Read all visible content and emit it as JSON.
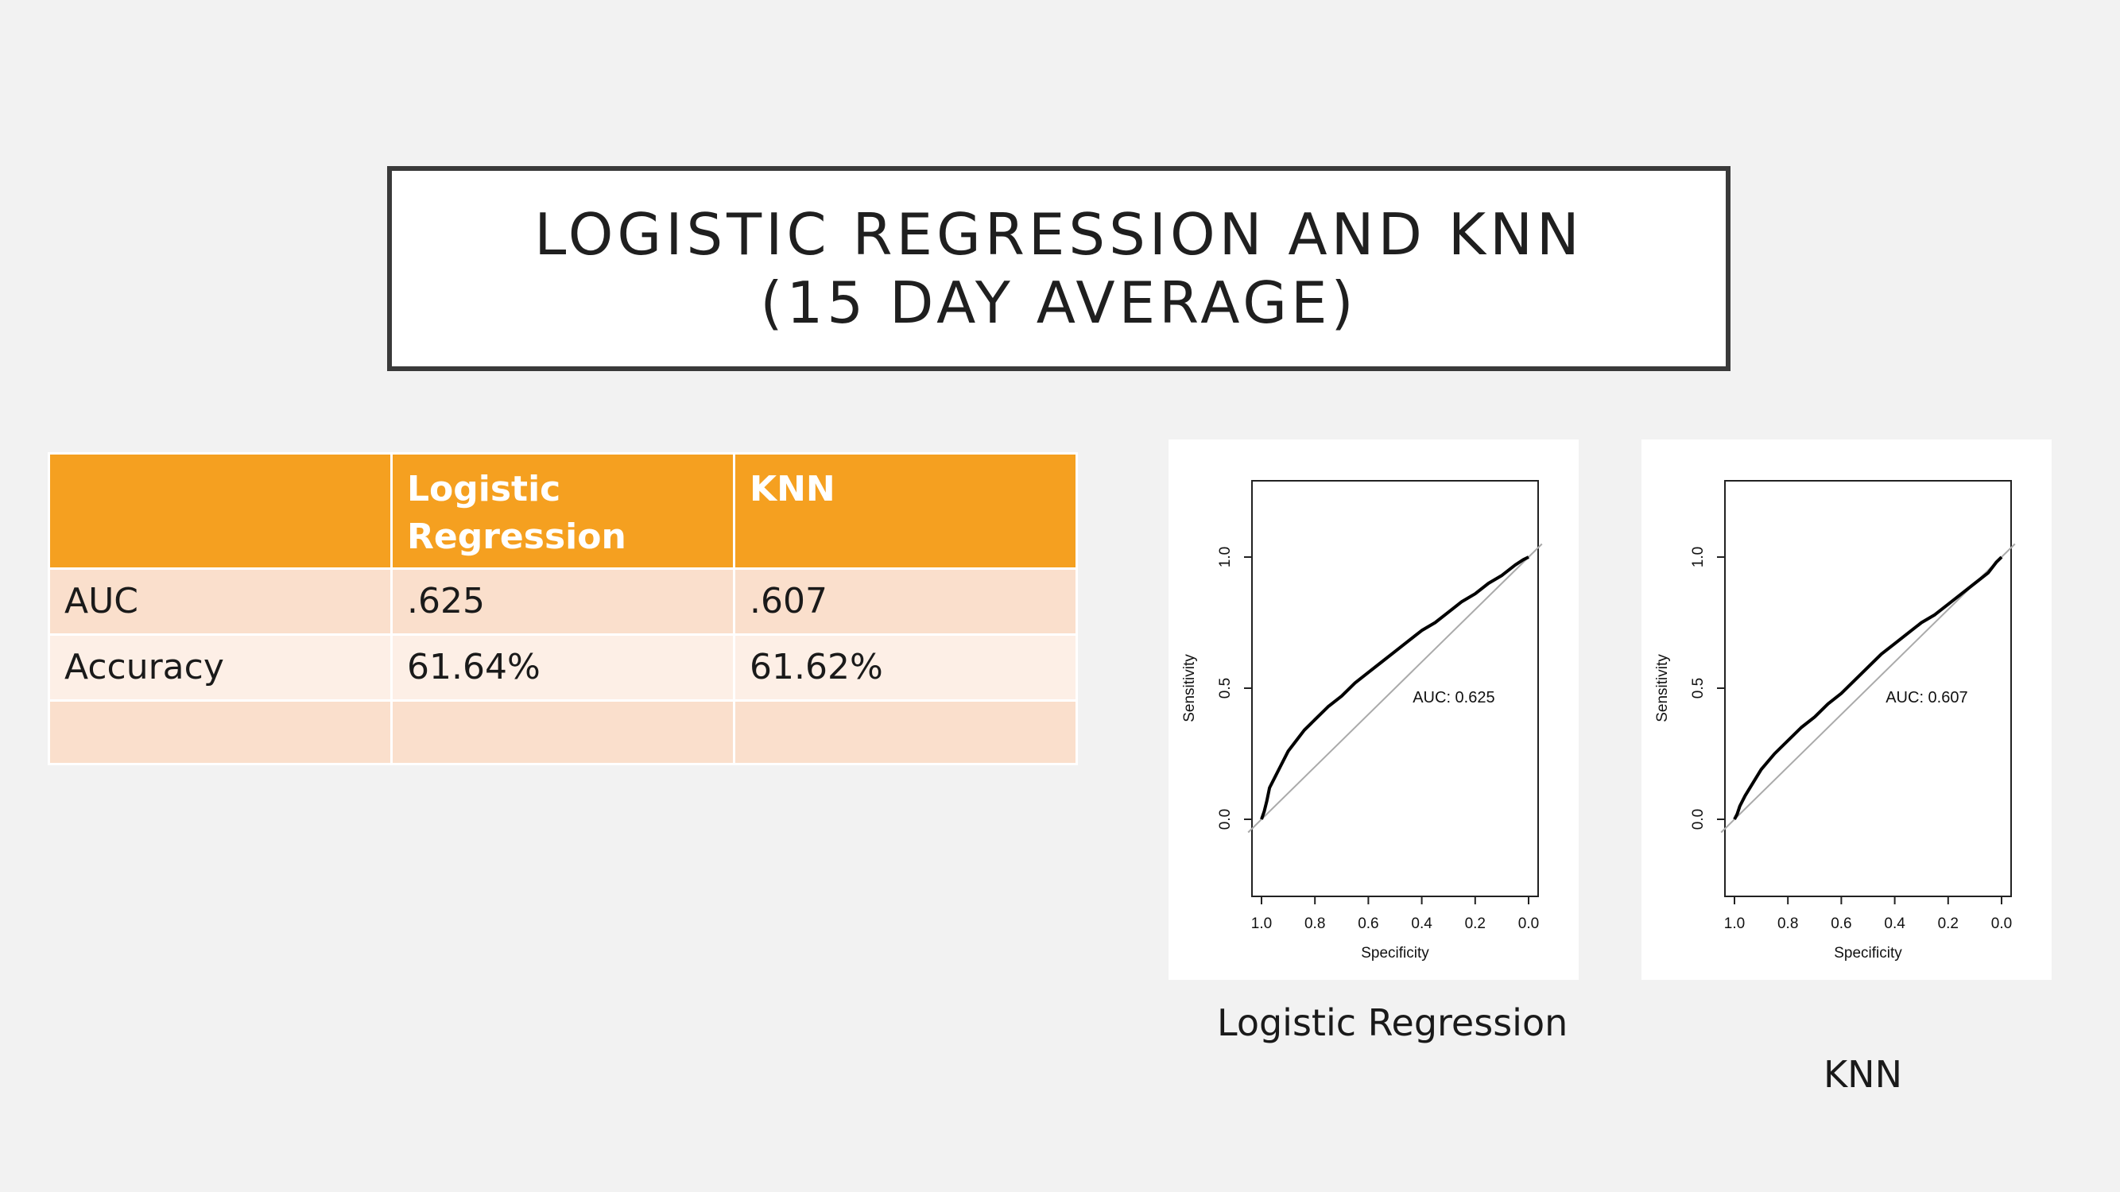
{
  "slide": {
    "title_line1": "LOGISTIC REGRESSION AND KNN",
    "title_line2": "(15 DAY AVERAGE)"
  },
  "table": {
    "headers": [
      "",
      "Logistic Regression",
      "KNN"
    ],
    "rows": [
      [
        "AUC",
        ".625",
        ".607"
      ],
      [
        "Accuracy",
        "61.64%",
        "61.62%"
      ],
      [
        "",
        "",
        ""
      ]
    ]
  },
  "captions": {
    "left": "Logistic Regression",
    "right": "KNN"
  },
  "chart_data": [
    {
      "type": "line",
      "xlabel": "Specificity",
      "ylabel": "Sensitivity",
      "x_reversed": true,
      "xlim": [
        1.0,
        0.0
      ],
      "ylim": [
        0.0,
        1.0
      ],
      "xticks": [
        "1.0",
        "0.8",
        "0.6",
        "0.4",
        "0.2",
        "0.0"
      ],
      "yticks": [
        "0.0",
        "0.5",
        "1.0"
      ],
      "annotation": "AUC: 0.625",
      "series": [
        {
          "x": [
            1.0,
            0.99,
            0.98,
            0.97,
            0.95,
            0.93,
            0.9,
            0.87,
            0.84,
            0.8,
            0.75,
            0.7,
            0.65,
            0.6,
            0.55,
            0.5,
            0.45,
            0.4,
            0.35,
            0.3,
            0.25,
            0.2,
            0.15,
            0.1,
            0.05,
            0.02,
            0.0
          ],
          "y": [
            0.0,
            0.03,
            0.07,
            0.12,
            0.16,
            0.2,
            0.26,
            0.3,
            0.34,
            0.38,
            0.43,
            0.47,
            0.52,
            0.56,
            0.6,
            0.64,
            0.68,
            0.72,
            0.75,
            0.79,
            0.83,
            0.86,
            0.9,
            0.93,
            0.97,
            0.99,
            1.0
          ]
        },
        {
          "x": [
            1.0,
            0.0
          ],
          "y": [
            0.0,
            1.0
          ]
        }
      ]
    },
    {
      "type": "line",
      "xlabel": "Specificity",
      "ylabel": "Sensitivity",
      "x_reversed": true,
      "xlim": [
        1.0,
        0.0
      ],
      "ylim": [
        0.0,
        1.0
      ],
      "xticks": [
        "1.0",
        "0.8",
        "0.6",
        "0.4",
        "0.2",
        "0.0"
      ],
      "yticks": [
        "0.0",
        "0.5",
        "1.0"
      ],
      "annotation": "AUC: 0.607",
      "series": [
        {
          "x": [
            1.0,
            0.99,
            0.98,
            0.96,
            0.93,
            0.9,
            0.85,
            0.8,
            0.75,
            0.7,
            0.65,
            0.6,
            0.55,
            0.5,
            0.45,
            0.4,
            0.35,
            0.3,
            0.25,
            0.2,
            0.15,
            0.1,
            0.05,
            0.02,
            0.0
          ],
          "y": [
            0.0,
            0.02,
            0.05,
            0.09,
            0.14,
            0.19,
            0.25,
            0.3,
            0.35,
            0.39,
            0.44,
            0.48,
            0.53,
            0.58,
            0.63,
            0.67,
            0.71,
            0.75,
            0.78,
            0.82,
            0.86,
            0.9,
            0.94,
            0.98,
            1.0
          ]
        },
        {
          "x": [
            1.0,
            0.0
          ],
          "y": [
            0.0,
            1.0
          ]
        }
      ]
    }
  ]
}
